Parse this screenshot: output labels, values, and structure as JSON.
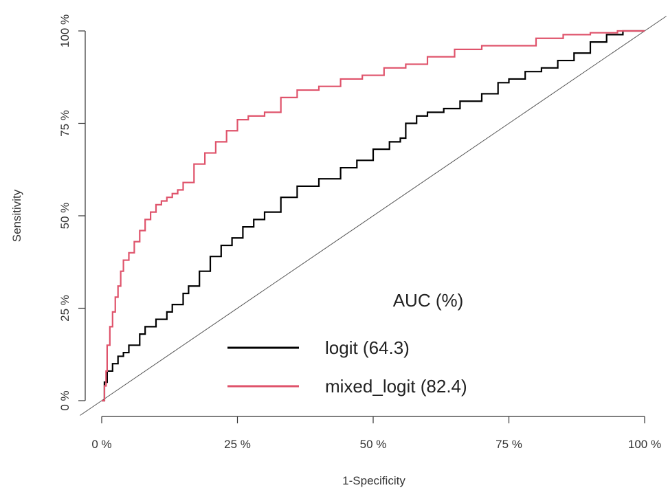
{
  "chart_data": {
    "type": "line",
    "xlabel": "1-Specificity",
    "ylabel": "Sensitivity",
    "xlim": [
      0,
      100
    ],
    "ylim": [
      0,
      100
    ],
    "x_ticks": [
      "0 %",
      "25 %",
      "50 %",
      "75 %",
      "100 %"
    ],
    "y_ticks": [
      "0 %",
      "25 %",
      "50 %",
      "75 %",
      "100 %"
    ],
    "grid": false,
    "reference_line": "diagonal",
    "legend": {
      "title": "AUC (%)",
      "placement": "bottom-right",
      "entries": [
        "logit (64.3)",
        "mixed_logit (82.4)"
      ]
    },
    "series": [
      {
        "name": "logit (64.3)",
        "color": "#000000",
        "x": [
          0,
          0.5,
          1,
          2,
          3,
          4,
          5,
          7,
          8,
          10,
          12,
          13,
          15,
          16,
          18,
          20,
          22,
          24,
          26,
          28,
          30,
          33,
          36,
          40,
          44,
          47,
          50,
          53,
          55,
          56,
          58,
          60,
          63,
          66,
          70,
          73,
          75,
          78,
          81,
          84,
          87,
          90,
          93,
          96,
          98,
          100
        ],
        "y": [
          0,
          5,
          8,
          10,
          12,
          13,
          15,
          18,
          20,
          22,
          24,
          26,
          29,
          31,
          35,
          39,
          42,
          44,
          47,
          49,
          51,
          55,
          58,
          60,
          63,
          65,
          68,
          70,
          71,
          75,
          77,
          78,
          79,
          81,
          83,
          86,
          87,
          89,
          90,
          92,
          94,
          97,
          99,
          100,
          100,
          100
        ]
      },
      {
        "name": "mixed_logit (82.4)",
        "color": "#df536b",
        "x": [
          0,
          0.5,
          0.8,
          1,
          1.5,
          2,
          2.5,
          3,
          3.5,
          4,
          5,
          6,
          7,
          8,
          9,
          10,
          11,
          12,
          13,
          14,
          15,
          17,
          19,
          21,
          23,
          25,
          27,
          30,
          33,
          36,
          40,
          44,
          48,
          52,
          56,
          60,
          65,
          70,
          75,
          80,
          85,
          90,
          95,
          100
        ],
        "y": [
          0,
          4,
          8,
          15,
          20,
          24,
          28,
          31,
          35,
          38,
          40,
          43,
          46,
          49,
          51,
          53,
          54,
          55,
          56,
          57,
          59,
          64,
          67,
          70,
          73,
          76,
          77,
          78,
          82,
          84,
          85,
          87,
          88,
          90,
          91,
          93,
          95,
          96,
          96,
          98,
          99,
          99.5,
          100,
          100
        ]
      }
    ]
  }
}
